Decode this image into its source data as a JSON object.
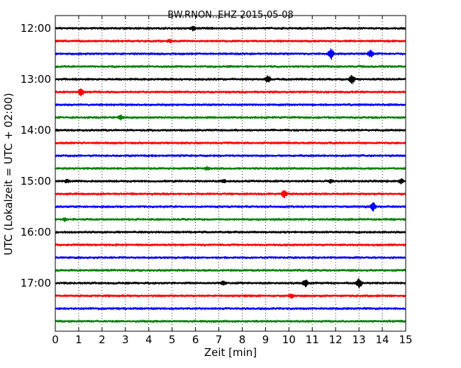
{
  "chart_data": {
    "type": "line",
    "title": "BW.RNON..EHZ 2015-05-08",
    "xlabel": "Zeit  [min]",
    "ylabel": "UTC (Lokalzeit = UTC + 02:00)",
    "xlim": [
      0,
      15
    ],
    "x_ticks": [
      "0",
      "1",
      "2",
      "3",
      "4",
      "5",
      "6",
      "7",
      "8",
      "9",
      "10",
      "11",
      "12",
      "13",
      "14",
      "15"
    ],
    "y_ticks": [
      "12:00",
      "13:00",
      "14:00",
      "15:00",
      "16:00",
      "17:00"
    ],
    "trace_minutes": 15,
    "grid": "vertical-dotted",
    "series": [
      {
        "start": "12:00",
        "color": "#000000",
        "events": [
          [
            5.9,
            4
          ]
        ]
      },
      {
        "start": "12:15",
        "color": "#ff0000",
        "events": [
          [
            4.9,
            3
          ]
        ]
      },
      {
        "start": "12:30",
        "color": "#0000ff",
        "events": [
          [
            11.8,
            9
          ],
          [
            13.5,
            6
          ]
        ]
      },
      {
        "start": "12:45",
        "color": "#008000",
        "events": []
      },
      {
        "start": "13:00",
        "color": "#000000",
        "events": [
          [
            9.1,
            6
          ],
          [
            12.7,
            7
          ]
        ]
      },
      {
        "start": "13:15",
        "color": "#ff0000",
        "events": [
          [
            1.1,
            6
          ]
        ]
      },
      {
        "start": "13:30",
        "color": "#0000ff",
        "events": []
      },
      {
        "start": "13:45",
        "color": "#008000",
        "events": [
          [
            2.8,
            4
          ]
        ]
      },
      {
        "start": "14:00",
        "color": "#000000",
        "events": []
      },
      {
        "start": "14:15",
        "color": "#ff0000",
        "events": []
      },
      {
        "start": "14:30",
        "color": "#0000ff",
        "events": []
      },
      {
        "start": "14:45",
        "color": "#008000",
        "events": [
          [
            6.5,
            3
          ]
        ]
      },
      {
        "start": "15:00",
        "color": "#000000",
        "events": [
          [
            0.5,
            3
          ],
          [
            7.2,
            3
          ],
          [
            11.8,
            3
          ],
          [
            14.8,
            4
          ]
        ]
      },
      {
        "start": "15:15",
        "color": "#ff0000",
        "events": [
          [
            9.8,
            6
          ]
        ]
      },
      {
        "start": "15:30",
        "color": "#0000ff",
        "events": [
          [
            13.6,
            7
          ]
        ]
      },
      {
        "start": "15:45",
        "color": "#008000",
        "events": [
          [
            0.4,
            3
          ]
        ]
      },
      {
        "start": "16:00",
        "color": "#000000",
        "events": []
      },
      {
        "start": "16:15",
        "color": "#ff0000",
        "events": []
      },
      {
        "start": "16:30",
        "color": "#0000ff",
        "events": []
      },
      {
        "start": "16:45",
        "color": "#008000",
        "events": []
      },
      {
        "start": "17:00",
        "color": "#000000",
        "events": [
          [
            7.2,
            4
          ],
          [
            10.7,
            6
          ],
          [
            13.0,
            8
          ]
        ]
      },
      {
        "start": "17:15",
        "color": "#ff0000",
        "events": [
          [
            10.1,
            4
          ]
        ]
      },
      {
        "start": "17:30",
        "color": "#0000ff",
        "events": []
      },
      {
        "start": "17:45",
        "color": "#008000",
        "events": []
      }
    ]
  }
}
